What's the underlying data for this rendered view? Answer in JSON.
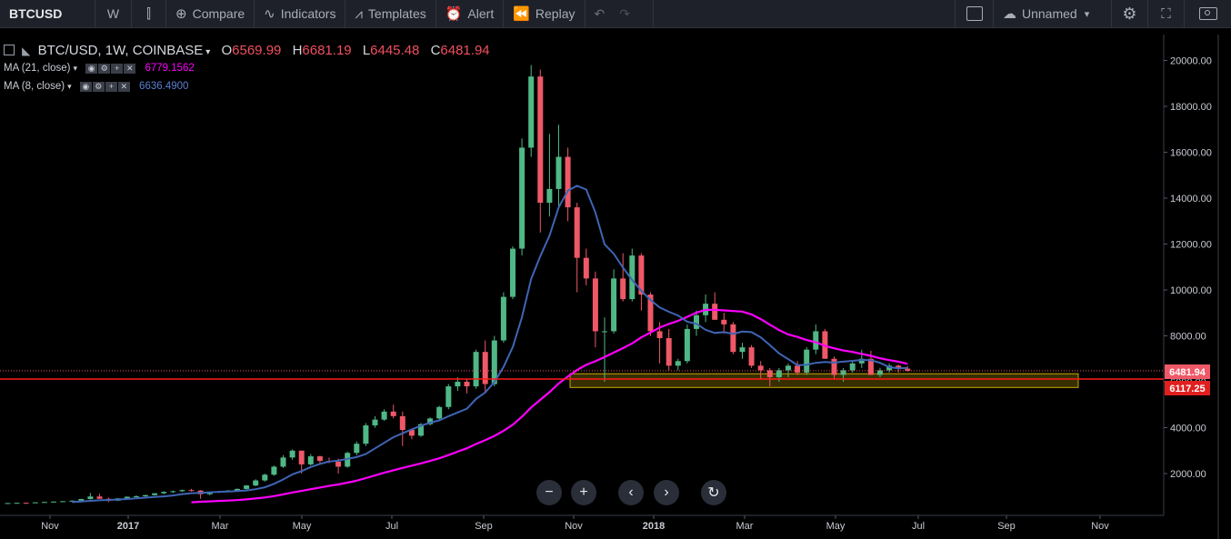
{
  "toolbar": {
    "symbol": "BTCUSD",
    "interval": "W",
    "compare": "Compare",
    "indicators": "Indicators",
    "templates": "Templates",
    "alert": "Alert",
    "replay": "Replay",
    "layout_name": "Unnamed"
  },
  "legend": {
    "title": "BTC/USD, 1W, COINBASE",
    "open_label": "O",
    "open": "6569.99",
    "high_label": "H",
    "high": "6681.19",
    "low_label": "L",
    "low": "6445.48",
    "close_label": "C",
    "close": "6481.94",
    "ma21_label": "MA (21, close)",
    "ma21_value": "6779.1562",
    "ma8_label": "MA (8, close)",
    "ma8_value": "6636.4900"
  },
  "price_labels": {
    "last": "6481.94",
    "line": "6117.25"
  },
  "colors": {
    "up": "#4fb886",
    "down": "#ef5867",
    "ma21": "#ff00ff",
    "ma8": "#3f65b5",
    "hline": "#ff1a1a",
    "zone": "#c8a800",
    "background": "#000000"
  },
  "chart_data": {
    "type": "candlestick",
    "title": "BTC/USD, 1W, COINBASE",
    "x_ticks": [
      "Nov",
      "2017",
      "Mar",
      "May",
      "Jul",
      "Sep",
      "Nov",
      "2018",
      "Mar",
      "May",
      "Jul",
      "Sep",
      "Nov"
    ],
    "y_ticks": [
      2000,
      4000,
      6000,
      8000,
      10000,
      12000,
      14000,
      16000,
      18000,
      20000
    ],
    "ylim": [
      -50,
      21100
    ],
    "ohlc": [
      [
        700,
        720,
        690,
        715
      ],
      [
        715,
        730,
        700,
        725
      ],
      [
        725,
        735,
        705,
        720
      ],
      [
        720,
        750,
        710,
        745
      ],
      [
        745,
        770,
        735,
        760
      ],
      [
        760,
        785,
        750,
        780
      ],
      [
        780,
        800,
        765,
        795
      ],
      [
        795,
        830,
        780,
        820
      ],
      [
        820,
        900,
        810,
        890
      ],
      [
        890,
        1150,
        870,
        1000
      ],
      [
        1000,
        1120,
        950,
        900
      ],
      [
        900,
        950,
        760,
        820
      ],
      [
        820,
        930,
        800,
        920
      ],
      [
        920,
        1000,
        900,
        990
      ],
      [
        990,
        1050,
        960,
        1010
      ],
      [
        1010,
        1080,
        990,
        1060
      ],
      [
        1060,
        1150,
        1040,
        1140
      ],
      [
        1140,
        1230,
        1100,
        1200
      ],
      [
        1200,
        1260,
        1150,
        1230
      ],
      [
        1230,
        1300,
        1200,
        1280
      ],
      [
        1280,
        1330,
        1220,
        1260
      ],
      [
        1260,
        1280,
        900,
        1100
      ],
      [
        1100,
        1200,
        1060,
        1190
      ],
      [
        1190,
        1240,
        1150,
        1220
      ],
      [
        1220,
        1280,
        1180,
        1260
      ],
      [
        1260,
        1350,
        1230,
        1330
      ],
      [
        1330,
        1500,
        1300,
        1480
      ],
      [
        1480,
        1750,
        1450,
        1700
      ],
      [
        1700,
        2000,
        1650,
        1950
      ],
      [
        1950,
        2350,
        1900,
        2300
      ],
      [
        2300,
        2800,
        2250,
        2700
      ],
      [
        2700,
        3050,
        2600,
        3000
      ],
      [
        3000,
        2920,
        2000,
        2400
      ],
      [
        2400,
        2850,
        2350,
        2750
      ],
      [
        2750,
        2780,
        2450,
        2550
      ],
      [
        2550,
        2700,
        2450,
        2520
      ],
      [
        2520,
        2650,
        2000,
        2300
      ],
      [
        2300,
        2950,
        2250,
        2900
      ],
      [
        2900,
        3400,
        2800,
        3300
      ],
      [
        3300,
        4200,
        3200,
        4100
      ],
      [
        4100,
        4500,
        4000,
        4350
      ],
      [
        4350,
        4800,
        4300,
        4700
      ],
      [
        4700,
        5000,
        4400,
        4500
      ],
      [
        4500,
        4700,
        3200,
        3900
      ],
      [
        3900,
        3950,
        3500,
        3650
      ],
      [
        3650,
        4200,
        3600,
        4150
      ],
      [
        4150,
        4450,
        4100,
        4400
      ],
      [
        4400,
        4950,
        4350,
        4900
      ],
      [
        4900,
        5900,
        4800,
        5800
      ],
      [
        5800,
        6200,
        5600,
        6000
      ],
      [
        6000,
        6100,
        5500,
        5800
      ],
      [
        5800,
        7400,
        5700,
        7300
      ],
      [
        7300,
        7800,
        5500,
        5900
      ],
      [
        5900,
        8000,
        5800,
        7800
      ],
      [
        7800,
        9900,
        7700,
        9700
      ],
      [
        9700,
        11900,
        9600,
        11800
      ],
      [
        11800,
        16600,
        11500,
        16200
      ],
      [
        16200,
        19800,
        15800,
        19300
      ],
      [
        19300,
        19600,
        12500,
        13800
      ],
      [
        13800,
        16800,
        13200,
        14400
      ],
      [
        14400,
        17200,
        13500,
        15800
      ],
      [
        15800,
        16200,
        13000,
        13600
      ],
      [
        13600,
        13800,
        9900,
        11400
      ],
      [
        11400,
        11800,
        10200,
        10500
      ],
      [
        10500,
        10800,
        7500,
        8200
      ],
      [
        8200,
        8800,
        6000,
        8200
      ],
      [
        8200,
        10900,
        8100,
        10500
      ],
      [
        10500,
        11600,
        9500,
        9600
      ],
      [
        9600,
        11800,
        9500,
        11500
      ],
      [
        11500,
        11600,
        9100,
        9800
      ],
      [
        9800,
        9900,
        8000,
        8200
      ],
      [
        8200,
        8600,
        6800,
        7900
      ],
      [
        7900,
        8300,
        6500,
        6700
      ],
      [
        6700,
        7000,
        6500,
        6900
      ],
      [
        6900,
        8500,
        6800,
        8300
      ],
      [
        8300,
        9100,
        8000,
        8900
      ],
      [
        8900,
        9800,
        8600,
        9400
      ],
      [
        9400,
        9900,
        8700,
        8700
      ],
      [
        8700,
        9000,
        8100,
        8500
      ],
      [
        8500,
        8600,
        7200,
        7300
      ],
      [
        7300,
        7700,
        7000,
        7500
      ],
      [
        7500,
        7600,
        6600,
        6700
      ],
      [
        6700,
        6900,
        6100,
        6500
      ],
      [
        6500,
        6600,
        5800,
        6200
      ],
      [
        6200,
        6600,
        6000,
        6500
      ],
      [
        6500,
        6800,
        6200,
        6700
      ],
      [
        6700,
        6900,
        6300,
        6400
      ],
      [
        6400,
        7500,
        6300,
        7400
      ],
      [
        7400,
        8500,
        7200,
        8200
      ],
      [
        8200,
        8300,
        7000,
        7000
      ],
      [
        7000,
        7100,
        6100,
        6300
      ],
      [
        6300,
        6600,
        6000,
        6500
      ],
      [
        6500,
        6900,
        6400,
        6800
      ],
      [
        6800,
        7400,
        6600,
        7000
      ],
      [
        7000,
        7350,
        6300,
        6300
      ],
      [
        6300,
        6600,
        6200,
        6500
      ],
      [
        6500,
        6800,
        6400,
        6700
      ],
      [
        6700,
        6750,
        6400,
        6570
      ],
      [
        6569.99,
        6681.19,
        6445.48,
        6481.94
      ]
    ],
    "ma21": [
      null,
      null,
      null,
      null,
      null,
      null,
      null,
      null,
      null,
      null,
      null,
      null,
      null,
      null,
      null,
      null,
      null,
      null,
      null,
      null,
      747,
      774,
      789,
      807,
      824,
      845,
      874,
      913,
      960,
      1018,
      1093,
      1175,
      1242,
      1318,
      1389,
      1460,
      1524,
      1603,
      1693,
      1802,
      1915,
      2036,
      2143,
      2245,
      2343,
      2443,
      2549,
      2664,
      2805,
      2955,
      3100,
      3287,
      3452,
      3641,
      3867,
      4127,
      4474,
      4879,
      5210,
      5548,
      5919,
      6230,
      6509,
      6738,
      6895,
      7072,
      7271,
      7465,
      7673,
      7932,
      8144,
      8361,
      8519,
      8654,
      8828,
      9012,
      9131,
      9138,
      9108,
      9083,
      9056,
      8936,
      8728,
      8488,
      8250,
      8059,
      7953,
      7818,
      7723,
      7570,
      7458,
      7364,
      7299,
      7216,
      7127,
      7023,
      6944,
      6876,
      6779
    ]
  },
  "chart_labels": {
    "x_ticks": [
      "Nov",
      "2017",
      "Mar",
      "May",
      "Jul",
      "Sep",
      "Nov",
      "2018",
      "Mar",
      "May",
      "Jul",
      "Sep",
      "Nov"
    ]
  },
  "y_tick_labels": [
    "2000.00",
    "4000.00",
    "6000.00",
    "8000.00",
    "10000.00",
    "12000.00",
    "14000.00",
    "16000.00",
    "18000.00",
    "20000.00"
  ]
}
